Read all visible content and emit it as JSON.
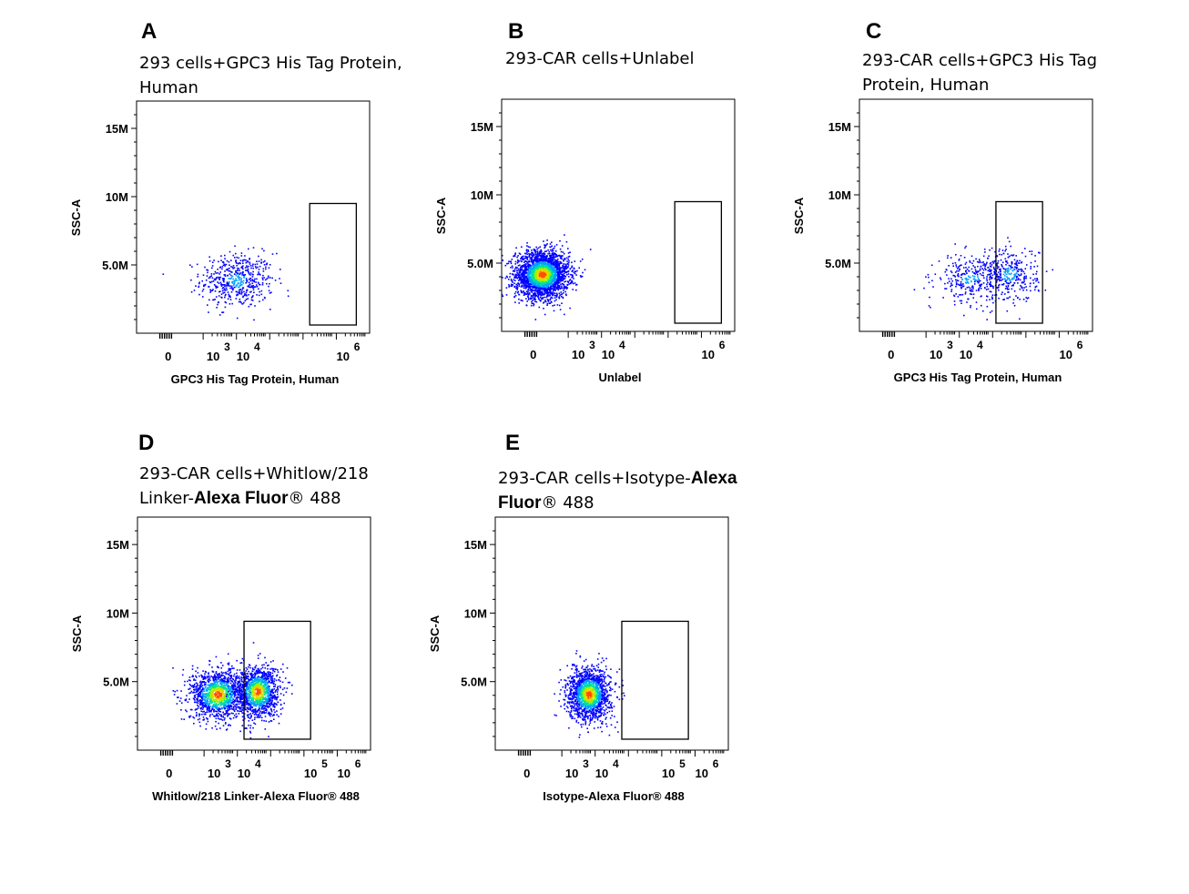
{
  "chart_data": [
    {
      "type": "scatter",
      "panel": "A",
      "title_parts": [
        {
          "text": "293 cells+GPC3 His Tag Protein,",
          "bold": false
        },
        {
          "text": "Human",
          "bold": false,
          "newline": true
        }
      ],
      "xlabel": "GPC3 His Tag Protein, Human",
      "ylabel": "SSC-A",
      "xticks": [
        {
          "base": "0",
          "exp": ""
        },
        {
          "base": "10",
          "exp": "3"
        },
        {
          "base": "10",
          "exp": "4"
        },
        {
          "base": "10",
          "exp": "6"
        }
      ],
      "yticks": [
        "15M",
        "10M",
        "5.0M"
      ],
      "ylim": [
        0,
        17
      ],
      "gate": {
        "x": [
          5.2,
          6.6
        ],
        "y": [
          0.6,
          9.5
        ]
      },
      "clusters": [
        {
          "x": 3.0,
          "y": 3.9,
          "sx": 0.55,
          "sy": 1.0,
          "n": 520
        }
      ]
    },
    {
      "type": "scatter",
      "panel": "B",
      "title_parts": [
        {
          "text": "293-CAR cells+Unlabel",
          "bold": false
        }
      ],
      "xlabel": "Unlabel",
      "ylabel": "SSC-A",
      "xticks": [
        {
          "base": "0",
          "exp": ""
        },
        {
          "base": "10",
          "exp": "3"
        },
        {
          "base": "10",
          "exp": "4"
        },
        {
          "base": "10",
          "exp": "6"
        }
      ],
      "yticks": [
        "15M",
        "10M",
        "5.0M"
      ],
      "ylim": [
        0,
        17
      ],
      "gate": {
        "x": [
          5.2,
          6.6
        ],
        "y": [
          0.6,
          9.5
        ]
      },
      "clusters": [
        {
          "x": 1.2,
          "y": 4.2,
          "sx": 0.4,
          "sy": 0.85,
          "n": 2600
        }
      ]
    },
    {
      "type": "scatter",
      "panel": "C",
      "title_parts": [
        {
          "text": "293-CAR cells+GPC3 His Tag",
          "bold": false
        },
        {
          "text": "Protein, Human",
          "bold": false,
          "newline": true
        }
      ],
      "xlabel": "GPC3 His Tag Protein, Human",
      "ylabel": "SSC-A",
      "xticks": [
        {
          "base": "0",
          "exp": ""
        },
        {
          "base": "10",
          "exp": "3"
        },
        {
          "base": "10",
          "exp": "4"
        },
        {
          "base": "10",
          "exp": "6"
        }
      ],
      "yticks": [
        "15M",
        "10M",
        "5.0M"
      ],
      "ylim": [
        0,
        17
      ],
      "gate": {
        "x": [
          4.1,
          5.5
        ],
        "y": [
          0.6,
          9.5
        ]
      },
      "clusters": [
        {
          "x": 3.3,
          "y": 3.9,
          "sx": 0.5,
          "sy": 0.85,
          "n": 300
        },
        {
          "x": 4.5,
          "y": 4.2,
          "sx": 0.42,
          "sy": 1.0,
          "n": 340
        }
      ]
    },
    {
      "type": "scatter",
      "panel": "D",
      "title_parts": [
        {
          "text": "293-CAR  cells+Whitlow/218",
          "bold": false
        },
        {
          "text": "Linker-",
          "bold": false,
          "newline": true
        },
        {
          "text": "Alexa Fluor",
          "bold": true
        },
        {
          "text": "® 488",
          "bold": false
        }
      ],
      "xlabel": "Whitlow/218 Linker-Alexa Fluor® 488",
      "ylabel": "SSC-A",
      "xticks": [
        {
          "base": "0",
          "exp": ""
        },
        {
          "base": "10",
          "exp": "3"
        },
        {
          "base": "10",
          "exp": "4"
        },
        {
          "base": "10",
          "exp": "5"
        },
        {
          "base": "10",
          "exp": "6"
        }
      ],
      "yticks": [
        "15M",
        "10M",
        "5.0M"
      ],
      "ylim": [
        0,
        17
      ],
      "gate": {
        "x": [
          3.2,
          5.2
        ],
        "y": [
          0.8,
          9.4
        ]
      },
      "clusters": [
        {
          "x": 2.4,
          "y": 4.1,
          "sx": 0.42,
          "sy": 0.9,
          "n": 1300
        },
        {
          "x": 3.6,
          "y": 4.3,
          "sx": 0.32,
          "sy": 0.95,
          "n": 1200
        }
      ]
    },
    {
      "type": "scatter",
      "panel": "E",
      "title_parts": [
        {
          "text": "293-CAR  cells+Isotype-",
          "bold": false
        },
        {
          "text": "Alexa",
          "bold": true
        },
        {
          "text": "Fluor",
          "bold": true,
          "newline": true
        },
        {
          "text": "® 488",
          "bold": false
        }
      ],
      "xlabel": "Isotype-Alexa Fluor® 488",
      "ylabel": "SSC-A",
      "xticks": [
        {
          "base": "0",
          "exp": ""
        },
        {
          "base": "10",
          "exp": "3"
        },
        {
          "base": "10",
          "exp": "4"
        },
        {
          "base": "10",
          "exp": "5"
        },
        {
          "base": "10",
          "exp": "6"
        }
      ],
      "yticks": [
        "15M",
        "10M",
        "5.0M"
      ],
      "ylim": [
        0,
        17
      ],
      "gate": {
        "x": [
          3.8,
          5.8
        ],
        "y": [
          0.8,
          9.4
        ]
      },
      "clusters": [
        {
          "x": 2.8,
          "y": 4.1,
          "sx": 0.32,
          "sy": 0.95,
          "n": 1500
        }
      ]
    }
  ],
  "colors": {
    "density_scale": [
      "#0000ff",
      "#00a0ff",
      "#00e0a0",
      "#a0f000",
      "#ffd000",
      "#ff5000"
    ],
    "frame": "#000000"
  }
}
